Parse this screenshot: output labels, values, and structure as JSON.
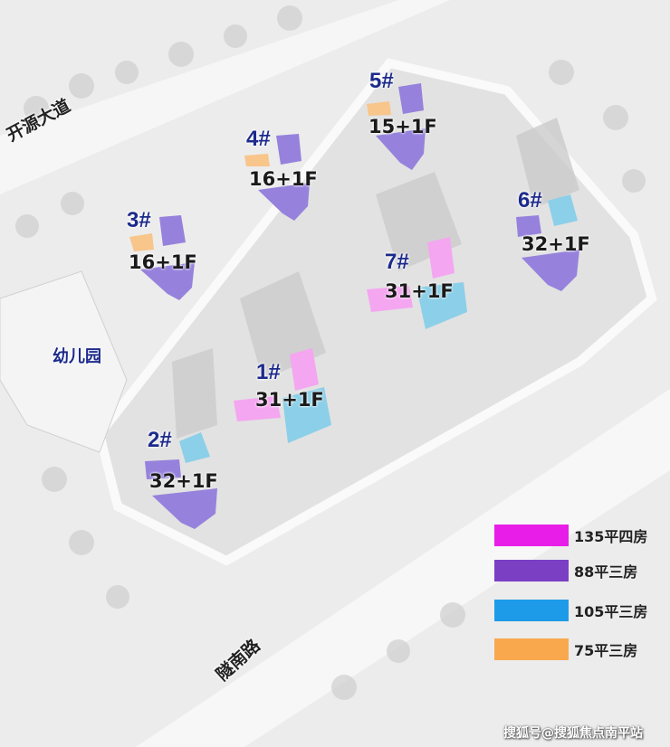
{
  "roads": {
    "north": "开源大道",
    "south": "隧南路"
  },
  "facilities": {
    "kindergarten": "幼儿园"
  },
  "unit_colors": {
    "pink": "#f4a6f0",
    "purple": "#9682dc",
    "blue": "#8ccfe8",
    "orange": "#f8c58a"
  },
  "buildings": [
    {
      "label": "1#",
      "floors": "31+1F",
      "units": [
        "135平四房",
        "105平三房"
      ]
    },
    {
      "label": "2#",
      "floors": "32+1F",
      "units": [
        "88平三房",
        "105平三房"
      ]
    },
    {
      "label": "3#",
      "floors": "16+1F",
      "units": [
        "88平三房",
        "75平三房"
      ]
    },
    {
      "label": "4#",
      "floors": "16+1F",
      "units": [
        "88平三房",
        "75平三房"
      ]
    },
    {
      "label": "5#",
      "floors": "15+1F",
      "units": [
        "88平三房",
        "75平三房"
      ]
    },
    {
      "label": "6#",
      "floors": "32+1F",
      "units": [
        "88平三房",
        "105平三房"
      ]
    },
    {
      "label": "7#",
      "floors": "31+1F",
      "units": [
        "135平四房",
        "105平三房"
      ]
    }
  ],
  "legend": [
    {
      "label": "135平四房",
      "color": "#e81ee8"
    },
    {
      "label": "88平三房",
      "color": "#7b3fc4"
    },
    {
      "label": "105平三房",
      "color": "#1e9be8"
    },
    {
      "label": "75平三房",
      "color": "#f9a84e"
    }
  ],
  "watermark": "搜狐号@搜狐焦点南平站"
}
